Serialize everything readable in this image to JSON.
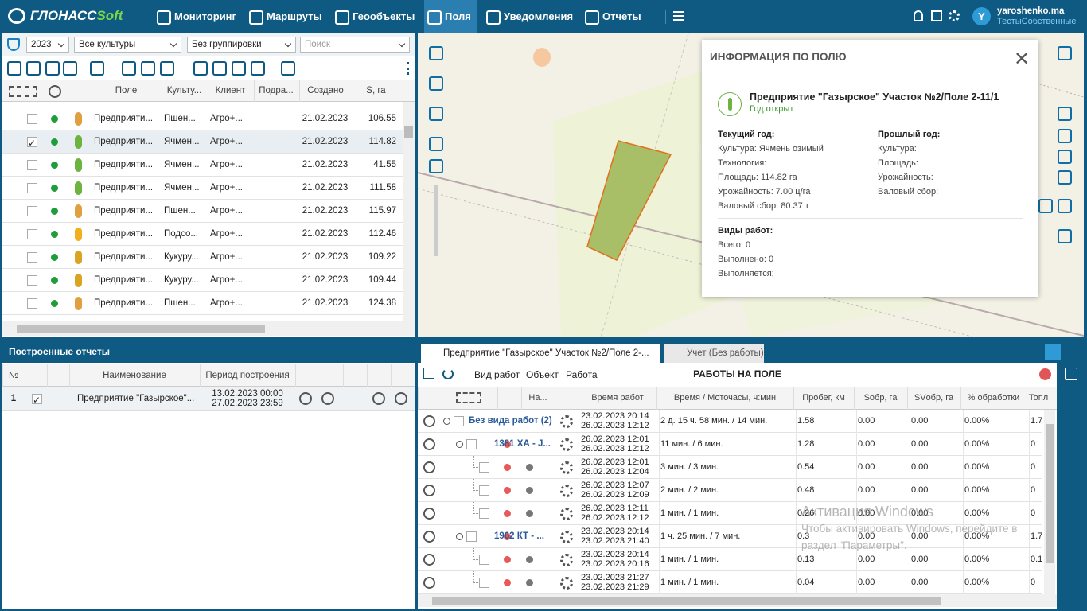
{
  "nav": {
    "brand": "ГЛОНАСС",
    "brand_suffix": "Soft",
    "items": [
      "Мониторинг",
      "Маршруты",
      "Геообъекты",
      "Поля",
      "Уведомления",
      "Отчеты"
    ]
  },
  "user": {
    "avatar": "Y",
    "login": "yaroshenko.ma",
    "company": "ТестыСобственные"
  },
  "filters": {
    "year": "2023",
    "culture": "Все культуры",
    "grouping": "Без группировки",
    "search_placeholder": "Поиск"
  },
  "fields_table": {
    "columns": [
      "Поле",
      "Культу...",
      "Клиент",
      "Подра...",
      "Создано",
      "S, га"
    ],
    "rows": [
      [
        "Предприяти...",
        "Пшен...",
        "Агро+...",
        "",
        "21.02.2023",
        "106.55"
      ],
      [
        "Предприяти...",
        "Ячмен...",
        "Агро+...",
        "",
        "21.02.2023",
        "114.82"
      ],
      [
        "Предприяти...",
        "Ячмен...",
        "Агро+...",
        "",
        "21.02.2023",
        "41.55"
      ],
      [
        "Предприяти...",
        "Ячмен...",
        "Агро+...",
        "",
        "21.02.2023",
        "111.58"
      ],
      [
        "Предприяти...",
        "Пшен...",
        "Агро+...",
        "",
        "21.02.2023",
        "115.97"
      ],
      [
        "Предприяти...",
        "Подсо...",
        "Агро+...",
        "",
        "21.02.2023",
        "112.46"
      ],
      [
        "Предприяти...",
        "Кукуру...",
        "Агро+...",
        "",
        "21.02.2023",
        "109.22"
      ],
      [
        "Предприяти...",
        "Кукуру...",
        "Агро+...",
        "",
        "21.02.2023",
        "109.44"
      ],
      [
        "Предприяти...",
        "Пшен...",
        "Агро+...",
        "",
        "21.02.2023",
        "124.38"
      ]
    ],
    "icon_colors": [
      "#e0a040",
      "#6cb33f",
      "#6cb33f",
      "#6cb33f",
      "#e0a040",
      "#f0b020",
      "#d9a520",
      "#d9a520",
      "#e0a040"
    ]
  },
  "reports": {
    "title": "Построенные отчеты",
    "columns": [
      "№",
      "Наименование",
      "Период построения"
    ],
    "rows": [
      {
        "number": "1",
        "name": "Предприятие \"Газырское\"...",
        "from": "13.02.2023 00:00",
        "to": "27.02.2023 23:59"
      }
    ]
  },
  "field_info": {
    "title": "ИНФОРМАЦИЯ ПО ПОЛЮ",
    "field_name": "Предприятие \"Газырское\" Участок №2/Поле 2-11/1",
    "status": "Год открыт",
    "current_year": {
      "heading": "Текущий год:",
      "lines": [
        "Культура: Ячмень озимый",
        "Технология:",
        "Площадь: 114.82 га",
        "Урожайность: 7.00 ц/га",
        "Валовый сбор: 80.37 т"
      ]
    },
    "previous_year": {
      "heading": "Прошлый год:",
      "lines": [
        "Культура:",
        "Площадь:",
        "Урожайность:",
        "Валовый сбор:"
      ]
    },
    "works": {
      "heading": "Виды работ:",
      "lines": [
        "Всего: 0",
        "Выполнено: 0",
        "Выполняется:"
      ]
    }
  },
  "bottom_tabs": [
    "Предприятие \"Газырское\" Участок №2/Поле 2-...",
    "Учет (Без работы)"
  ],
  "breadcrumb": [
    "Вид работ",
    "Объект",
    "Работа"
  ],
  "works_title": "РАБОТЫ НА ПОЛЕ",
  "works_table": {
    "columns": [
      "На...",
      "Время работ",
      "Время / Моточасы, ч:мин",
      "Пробег, км",
      "Sобр, га",
      "SVобр, га",
      "% обработки",
      "Топл"
    ],
    "rows": [
      {
        "name": "Без вида работ (2)",
        "start": "23.02.2023 20:14",
        "end": "26.02.2023 12:12",
        "duration": "2 д. 15 ч. 58 мин. / 14 мин.",
        "mileage": "1.58",
        "s": "0.00",
        "sv": "0.00",
        "pct": "0.00%",
        "fuel": "1.7",
        "children": [
          {
            "name": "1381 ХА - J...",
            "start": "26.02.2023 12:01",
            "end": "26.02.2023 12:12",
            "duration": "11 мин. / 6 мин.",
            "mileage": "1.28",
            "s": "0.00",
            "sv": "0.00",
            "pct": "0.00%",
            "fuel": "0",
            "children": [
              {
                "start": "26.02.2023 12:01",
                "end": "26.02.2023 12:04",
                "duration": "3 мин. / 3 мин.",
                "mileage": "0.54",
                "s": "0.00",
                "sv": "0.00",
                "pct": "0.00%",
                "fuel": "0"
              },
              {
                "start": "26.02.2023 12:07",
                "end": "26.02.2023 12:09",
                "duration": "2 мин. / 2 мин.",
                "mileage": "0.48",
                "s": "0.00",
                "sv": "0.00",
                "pct": "0.00%",
                "fuel": "0"
              },
              {
                "start": "26.02.2023 12:11",
                "end": "26.02.2023 12:12",
                "duration": "1 мин. / 1 мин.",
                "mileage": "0.26",
                "s": "0.00",
                "sv": "0.00",
                "pct": "0.00%",
                "fuel": "0"
              }
            ]
          },
          {
            "name": "1962 КТ - ...",
            "start": "23.02.2023 20:14",
            "end": "23.02.2023 21:40",
            "duration": "1 ч. 25 мин. / 7 мин.",
            "mileage": "0.3",
            "s": "0.00",
            "sv": "0.00",
            "pct": "0.00%",
            "fuel": "1.7",
            "children": [
              {
                "start": "23.02.2023 20:14",
                "end": "23.02.2023 20:16",
                "duration": "1 мин. / 1 мин.",
                "mileage": "0.13",
                "s": "0.00",
                "sv": "0.00",
                "pct": "0.00%",
                "fuel": "0.1"
              },
              {
                "start": "23.02.2023 21:27",
                "end": "23.02.2023 21:29",
                "duration": "1 мин. / 1 мин.",
                "mileage": "0.04",
                "s": "0.00",
                "sv": "0.00",
                "pct": "0.00%",
                "fuel": "0"
              }
            ]
          }
        ]
      }
    ]
  },
  "watermark": {
    "title": "Активация Windows",
    "line1": "Чтобы активировать Windows, перейдите в",
    "line2": "раздел \"Параметры\"."
  }
}
